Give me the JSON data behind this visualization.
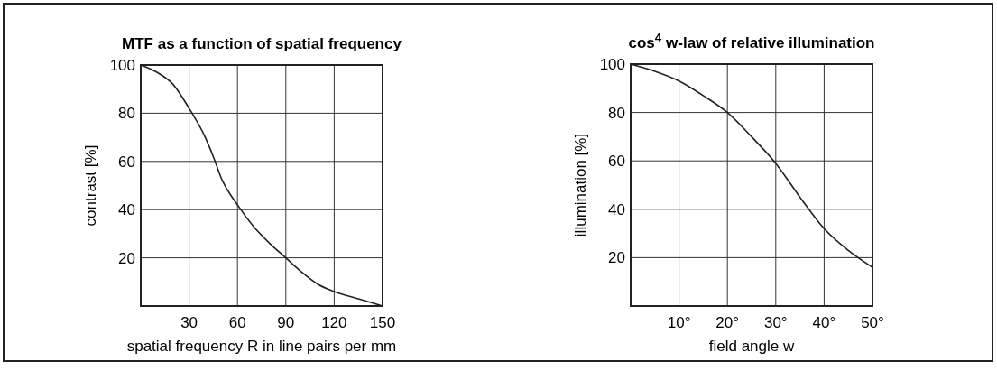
{
  "chart_data": [
    {
      "type": "line",
      "title": "MTF as a function of spatial frequency",
      "xlabel": "spatial frequency R in line pairs per mm",
      "ylabel": "contrast [%]",
      "color": "#222222",
      "grid": true,
      "marker": "none",
      "x": [
        0,
        10,
        20,
        30,
        40,
        45,
        50,
        60,
        70,
        80,
        90,
        100,
        110,
        120,
        135,
        150
      ],
      "values": [
        100,
        97,
        92,
        82,
        70,
        62,
        53,
        42,
        33,
        26,
        20,
        14,
        9,
        6,
        3,
        0
      ],
      "xlim": [
        0,
        150
      ],
      "ylim": [
        0,
        100
      ],
      "xticks": [
        30,
        60,
        90,
        120,
        150
      ],
      "yticks": [
        20,
        40,
        60,
        80,
        100
      ]
    },
    {
      "type": "line",
      "title": "cos$^{4}$ w-law of relative illumination",
      "xlabel": "field angle w",
      "ylabel": "illumination [%]",
      "color": "#222222",
      "grid": true,
      "marker": "none",
      "x": [
        0,
        5,
        10,
        15,
        20,
        25,
        30,
        35,
        40,
        45,
        50
      ],
      "values": [
        100,
        97,
        93,
        87,
        80,
        70,
        59,
        45,
        32,
        23,
        16
      ],
      "xlim": [
        0,
        50
      ],
      "ylim": [
        0,
        100
      ],
      "xticks": [
        {
          "value": 10,
          "label": "10°"
        },
        {
          "value": 20,
          "label": "20°"
        },
        {
          "value": 30,
          "label": "30°"
        },
        {
          "value": 40,
          "label": "40°"
        },
        {
          "value": 50,
          "label": "50°"
        }
      ],
      "yticks": [
        20,
        40,
        60,
        80,
        100
      ]
    }
  ]
}
